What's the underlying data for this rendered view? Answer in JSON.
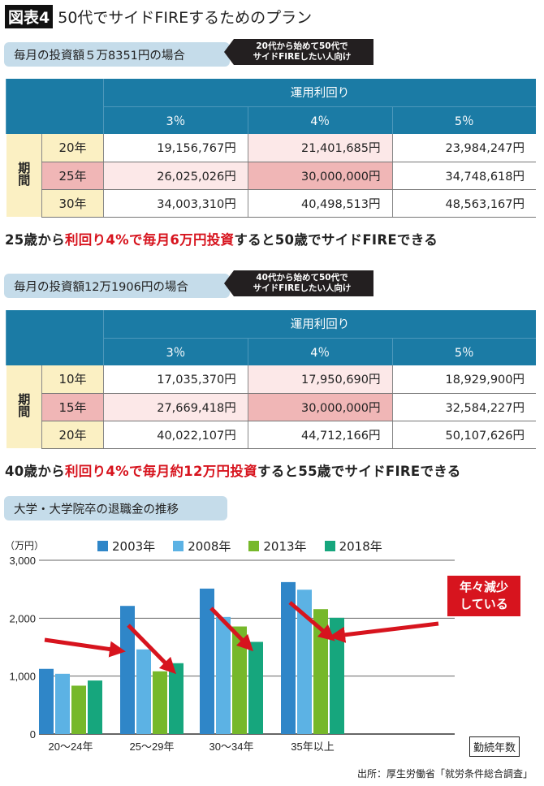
{
  "title": {
    "tag": "図表4",
    "text": "50代でサイドFIREするためのプラン"
  },
  "colors": {
    "header": "#1b7ba5",
    "period": "#fbf0c3",
    "highlight_light": "#fce8e8",
    "highlight_dark": "#f0b6b6",
    "accent_red": "#d7141e"
  },
  "plan1": {
    "label": "毎月の投資額５万8351円の場合",
    "note_line1": "20代から始めて50代で",
    "note_line2": "サイドFIREしたい人向け",
    "header": "運用利回り",
    "rates": [
      "3％",
      "4％",
      "5％"
    ],
    "period_label": "期間",
    "rows": [
      {
        "years": "20年",
        "values": [
          "19,156,767円",
          "21,401,685円",
          "23,984,247円"
        ]
      },
      {
        "years": "25年",
        "values": [
          "26,025,026円",
          "30,000,000円",
          "34,748,618円"
        ]
      },
      {
        "years": "30年",
        "values": [
          "34,003,310円",
          "40,498,513円",
          "48,563,167円"
        ]
      }
    ],
    "conclusion": {
      "a": "25歳から",
      "b": "利回り4%で毎月6万円投資",
      "c": "すると50歳でサイドFIREできる"
    }
  },
  "plan2": {
    "label": "毎月の投資額12万1906円の場合",
    "note_line1": "40代から始めて50代で",
    "note_line2": "サイドFIREしたい人向け",
    "header": "運用利回り",
    "rates": [
      "3％",
      "4％",
      "5％"
    ],
    "period_label": "期間",
    "rows": [
      {
        "years": "10年",
        "values": [
          "17,035,370円",
          "17,950,690円",
          "18,929,900円"
        ]
      },
      {
        "years": "15年",
        "values": [
          "27,669,418円",
          "30,000,000円",
          "32,584,227円"
        ]
      },
      {
        "years": "20年",
        "values": [
          "40,022,107円",
          "44,712,166円",
          "50,107,626円"
        ]
      }
    ],
    "conclusion": {
      "a": "40歳から",
      "b": "利回り4%で毎月約12万円投資",
      "c": "すると55歳でサイドFIREできる"
    }
  },
  "chart_data": {
    "type": "bar",
    "title": "大学・大学院卒の退職金の推移",
    "ylabel": "（万円）",
    "xlabel": "勤続年数",
    "categories": [
      "20〜24年",
      "25〜29年",
      "30〜34年",
      "35年以上"
    ],
    "ylim": [
      0,
      3000
    ],
    "yticks": [
      "0",
      "1,000",
      "2,000",
      "3,000"
    ],
    "grid": true,
    "legend": "top",
    "series": [
      {
        "name": "2003年",
        "color": "#2f86c8",
        "values": [
          1125,
          2212,
          2511,
          2623
        ]
      },
      {
        "name": "2008年",
        "color": "#5cb2e4",
        "values": [
          1040,
          1461,
          2021,
          2492
        ]
      },
      {
        "name": "2013年",
        "color": "#76b82a",
        "values": [
          835,
          1083,
          1857,
          2156
        ]
      },
      {
        "name": "2018年",
        "color": "#16a67d",
        "values": [
          924,
          1223,
          1591,
          2007
        ]
      }
    ],
    "annotation": {
      "line1": "年々減少",
      "line2": "している"
    }
  },
  "source": "出所：厚生労働省「就労条件総合調査」"
}
